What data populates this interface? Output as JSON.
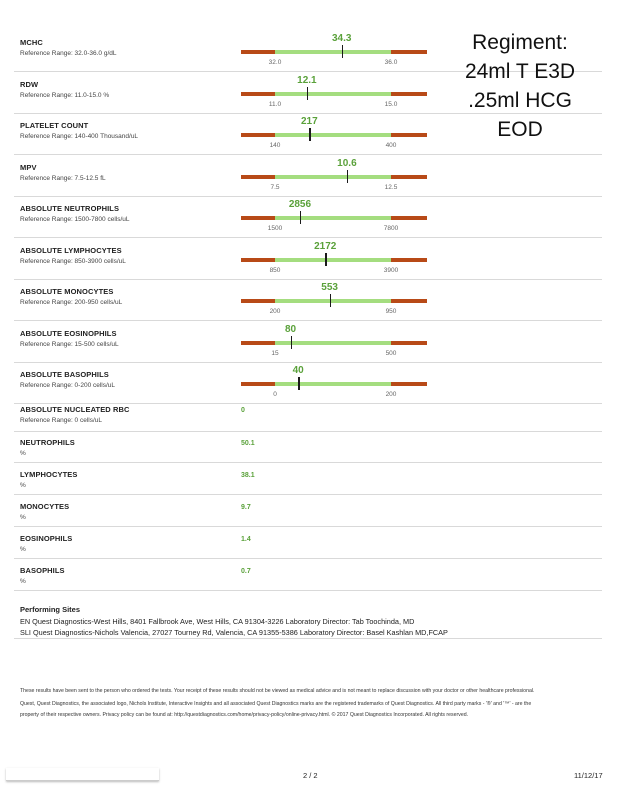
{
  "regiment_note": [
    "Regiment:",
    "24ml T E3D",
    ".25ml HCG",
    "EOD"
  ],
  "colors": {
    "out_of_range": "#b84a17",
    "in_range": "#a4dd7f",
    "value": "#5aa13a"
  },
  "bar_tests": [
    {
      "name": "MCHC",
      "range": "Reference Range: 32.0-36.0 g/dL",
      "value": "34.3",
      "low": "32.0",
      "high": "36.0",
      "level": 0.575
    },
    {
      "name": "RDW",
      "range": "Reference Range: 11.0-15.0 %",
      "value": "12.1",
      "low": "11.0",
      "high": "15.0",
      "level": 0.275
    },
    {
      "name": "PLATELET COUNT",
      "range": "Reference Range: 140-400 Thousand/uL",
      "value": "217",
      "low": "140",
      "high": "400",
      "level": 0.296
    },
    {
      "name": "MPV",
      "range": "Reference Range: 7.5-12.5 fL",
      "value": "10.6",
      "low": "7.5",
      "high": "12.5",
      "level": 0.62
    },
    {
      "name": "ABSOLUTE NEUTROPHILS",
      "range": "Reference Range: 1500-7800 cells/uL",
      "value": "2856",
      "low": "1500",
      "high": "7800",
      "level": 0.215
    },
    {
      "name": "ABSOLUTE LYMPHOCYTES",
      "range": "Reference Range: 850-3900 cells/uL",
      "value": "2172",
      "low": "850",
      "high": "3900",
      "level": 0.433
    },
    {
      "name": "ABSOLUTE MONOCYTES",
      "range": "Reference Range: 200-950 cells/uL",
      "value": "553",
      "low": "200",
      "high": "950",
      "level": 0.471
    },
    {
      "name": "ABSOLUTE EOSINOPHILS",
      "range": "Reference Range: 15-500 cells/uL",
      "value": "80",
      "low": "15",
      "high": "500",
      "level": 0.134
    },
    {
      "name": "ABSOLUTE BASOPHILS",
      "range": "Reference Range: 0-200 cells/uL",
      "value": "40",
      "low": "0",
      "high": "200",
      "level": 0.2
    }
  ],
  "plain_tests": [
    {
      "name": "ABSOLUTE NUCLEATED RBC",
      "range": "Reference Range: 0 cells/uL",
      "value": "0"
    },
    {
      "name": "NEUTROPHILS",
      "range": "%",
      "value": "50.1"
    },
    {
      "name": "LYMPHOCYTES",
      "range": "%",
      "value": "38.1"
    },
    {
      "name": "MONOCYTES",
      "range": "%",
      "value": "9.7"
    },
    {
      "name": "EOSINOPHILS",
      "range": "%",
      "value": "1.4"
    },
    {
      "name": "BASOPHILS",
      "range": "%",
      "value": "0.7"
    }
  ],
  "performing_sites": {
    "heading": "Performing Sites",
    "lines": [
      "EN Quest Diagnostics-West Hills, 8401 Fallbrook Ave, West Hills, CA 91304-3226 Laboratory Director: Tab Toochinda, MD",
      "SLI Quest Diagnostics-Nichols Valencia, 27027 Tourney Rd, Valencia, CA 91355-5386 Laboratory Director: Basel Kashlan MD,FCAP"
    ]
  },
  "footer_notes": [
    "These results have been sent to the person who ordered the tests. Your receipt of these results should not be viewed as medical advice and is not meant to replace discussion with your doctor or other healthcare professional.",
    "Quest, Quest Diagnostics, the associated logo, Nichols Institute, Interactive Insights and all associated Quest Diagnostics marks are the registered trademarks of Quest Diagnostics. All third party marks - '®' and '™' - are the",
    "property of their respective owners. Privacy policy can be found at: http://questdiagnostics.com/home/privacy-policy/online-privacy.html. © 2017 Quest Diagnostics Incorporated. All rights reserved."
  ],
  "page": {
    "number": "2 / 2",
    "date": "11/12/17"
  }
}
